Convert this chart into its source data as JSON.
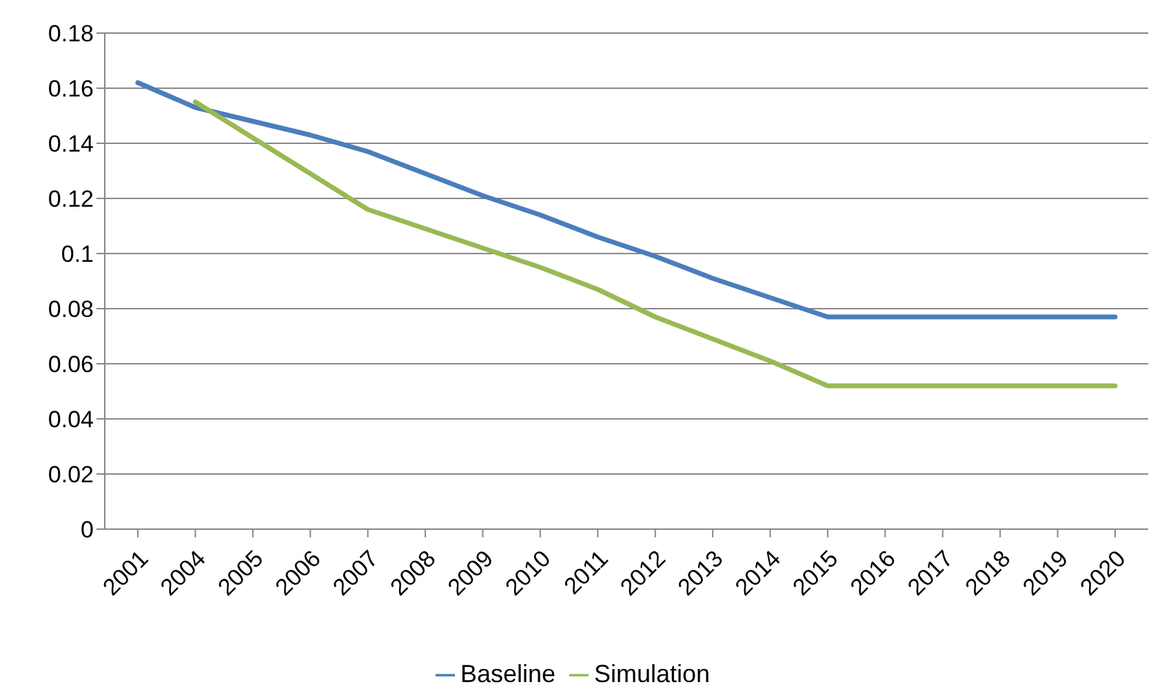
{
  "chart_data": {
    "type": "line",
    "categories": [
      "2001",
      "2004",
      "2005",
      "2006",
      "2007",
      "2008",
      "2009",
      "2010",
      "2011",
      "2012",
      "2013",
      "2014",
      "2015",
      "2016",
      "2017",
      "2018",
      "2019",
      "2020"
    ],
    "series": [
      {
        "name": "Baseline",
        "color": "#4a7ebb",
        "values": [
          0.162,
          0.153,
          0.148,
          0.143,
          0.137,
          0.129,
          0.121,
          0.114,
          0.106,
          0.099,
          0.091,
          0.084,
          0.077,
          0.077,
          0.077,
          0.077,
          0.077,
          0.077
        ]
      },
      {
        "name": "Simulation",
        "color": "#98b954",
        "values": [
          null,
          0.155,
          0.142,
          0.129,
          0.116,
          0.109,
          0.102,
          0.095,
          0.087,
          0.077,
          0.069,
          0.061,
          0.052,
          0.052,
          0.052,
          0.052,
          0.052,
          0.052
        ]
      }
    ],
    "ylim": [
      0,
      0.18
    ],
    "yticks": [
      0,
      0.02,
      0.04,
      0.06,
      0.08,
      0.1,
      0.12,
      0.14,
      0.16,
      0.18
    ],
    "grid": "y",
    "legend": "bottom",
    "marker": "none",
    "line_style": "solid"
  }
}
